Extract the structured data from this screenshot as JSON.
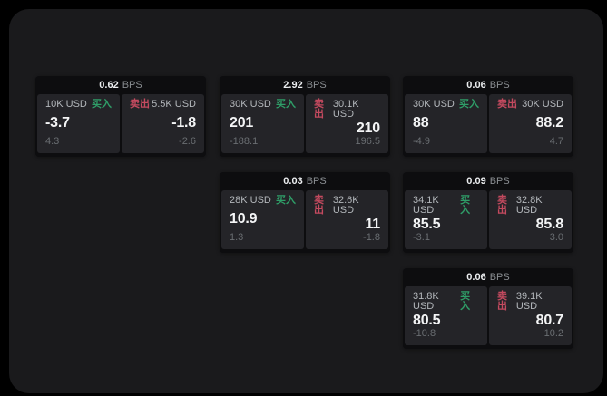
{
  "labels": {
    "bps": "BPS",
    "buy": "买入",
    "sell": "卖出"
  },
  "colors": {
    "page_bg": "#000000",
    "window_bg": "#1a1a1c",
    "card_bg": "#0d0d0f",
    "panel_bg": "#242428",
    "buy_green": "#2f9e68",
    "sell_red": "#c44a5f"
  },
  "cards": [
    {
      "bps": "0.62",
      "grid": {
        "row": 0,
        "col": 0
      },
      "buy": {
        "amount": "10K USD",
        "price": "-3.7",
        "delta": "4.3"
      },
      "sell": {
        "amount": "5.5K USD",
        "price": "-1.8",
        "delta": "-2.6"
      }
    },
    {
      "bps": "2.92",
      "grid": {
        "row": 0,
        "col": 1
      },
      "buy": {
        "amount": "30K USD",
        "price": "201",
        "delta": "-188.1"
      },
      "sell": {
        "amount": "30.1K USD",
        "price": "210",
        "delta": "196.5"
      }
    },
    {
      "bps": "0.06",
      "grid": {
        "row": 0,
        "col": 2
      },
      "buy": {
        "amount": "30K USD",
        "price": "88",
        "delta": "-4.9"
      },
      "sell": {
        "amount": "30K USD",
        "price": "88.2",
        "delta": "4.7"
      }
    },
    {
      "bps": "0.03",
      "grid": {
        "row": 1,
        "col": 1
      },
      "buy": {
        "amount": "28K USD",
        "price": "10.9",
        "delta": "1.3"
      },
      "sell": {
        "amount": "32.6K USD",
        "price": "11",
        "delta": "-1.8"
      }
    },
    {
      "bps": "0.09",
      "grid": {
        "row": 1,
        "col": 2
      },
      "buy": {
        "amount": "34.1K USD",
        "price": "85.5",
        "delta": "-3.1"
      },
      "sell": {
        "amount": "32.8K USD",
        "price": "85.8",
        "delta": "3.0"
      }
    },
    {
      "bps": "0.06",
      "grid": {
        "row": 2,
        "col": 2
      },
      "buy": {
        "amount": "31.8K USD",
        "price": "80.5",
        "delta": "-10.8"
      },
      "sell": {
        "amount": "39.1K USD",
        "price": "80.7",
        "delta": "10.2"
      }
    }
  ]
}
